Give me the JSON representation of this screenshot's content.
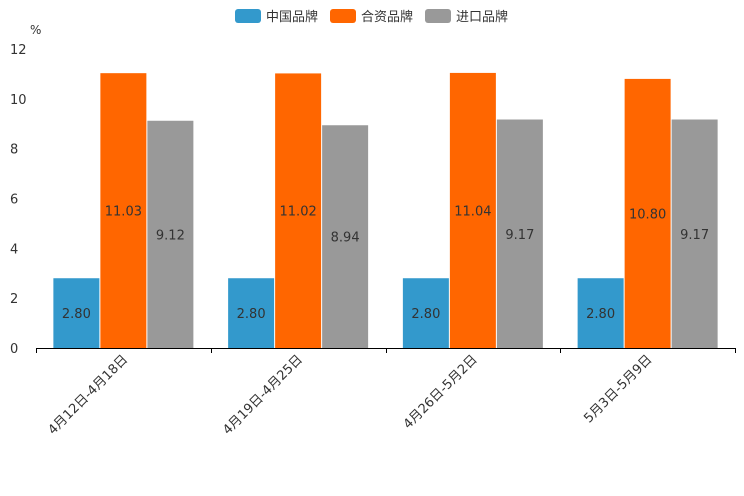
{
  "chart_data": {
    "type": "bar",
    "unit": "%",
    "categories": [
      "4月12日-4月18日",
      "4月19日-4月25日",
      "4月26日-5月2日",
      "5月3日-5月9日"
    ],
    "series": [
      {
        "name": "中国品牌",
        "color": "#3399cc",
        "values": [
          2.8,
          2.8,
          2.8,
          2.8
        ],
        "labels": [
          "2.80",
          "2.80",
          "2.80",
          "2.80"
        ]
      },
      {
        "name": "合资品牌",
        "color": "#ff6600",
        "values": [
          11.03,
          11.02,
          11.04,
          10.8
        ],
        "labels": [
          "11.03",
          "11.02",
          "11.04",
          "10.80"
        ]
      },
      {
        "name": "进口品牌",
        "color": "#999999",
        "values": [
          9.12,
          8.94,
          9.17,
          9.17
        ],
        "labels": [
          "9.12",
          "8.94",
          "9.17",
          "9.17"
        ]
      }
    ],
    "ylim": [
      0,
      12
    ],
    "yticks": [
      "0",
      "2",
      "4",
      "6",
      "8",
      "10",
      "12"
    ],
    "legend_position": "top-center"
  }
}
